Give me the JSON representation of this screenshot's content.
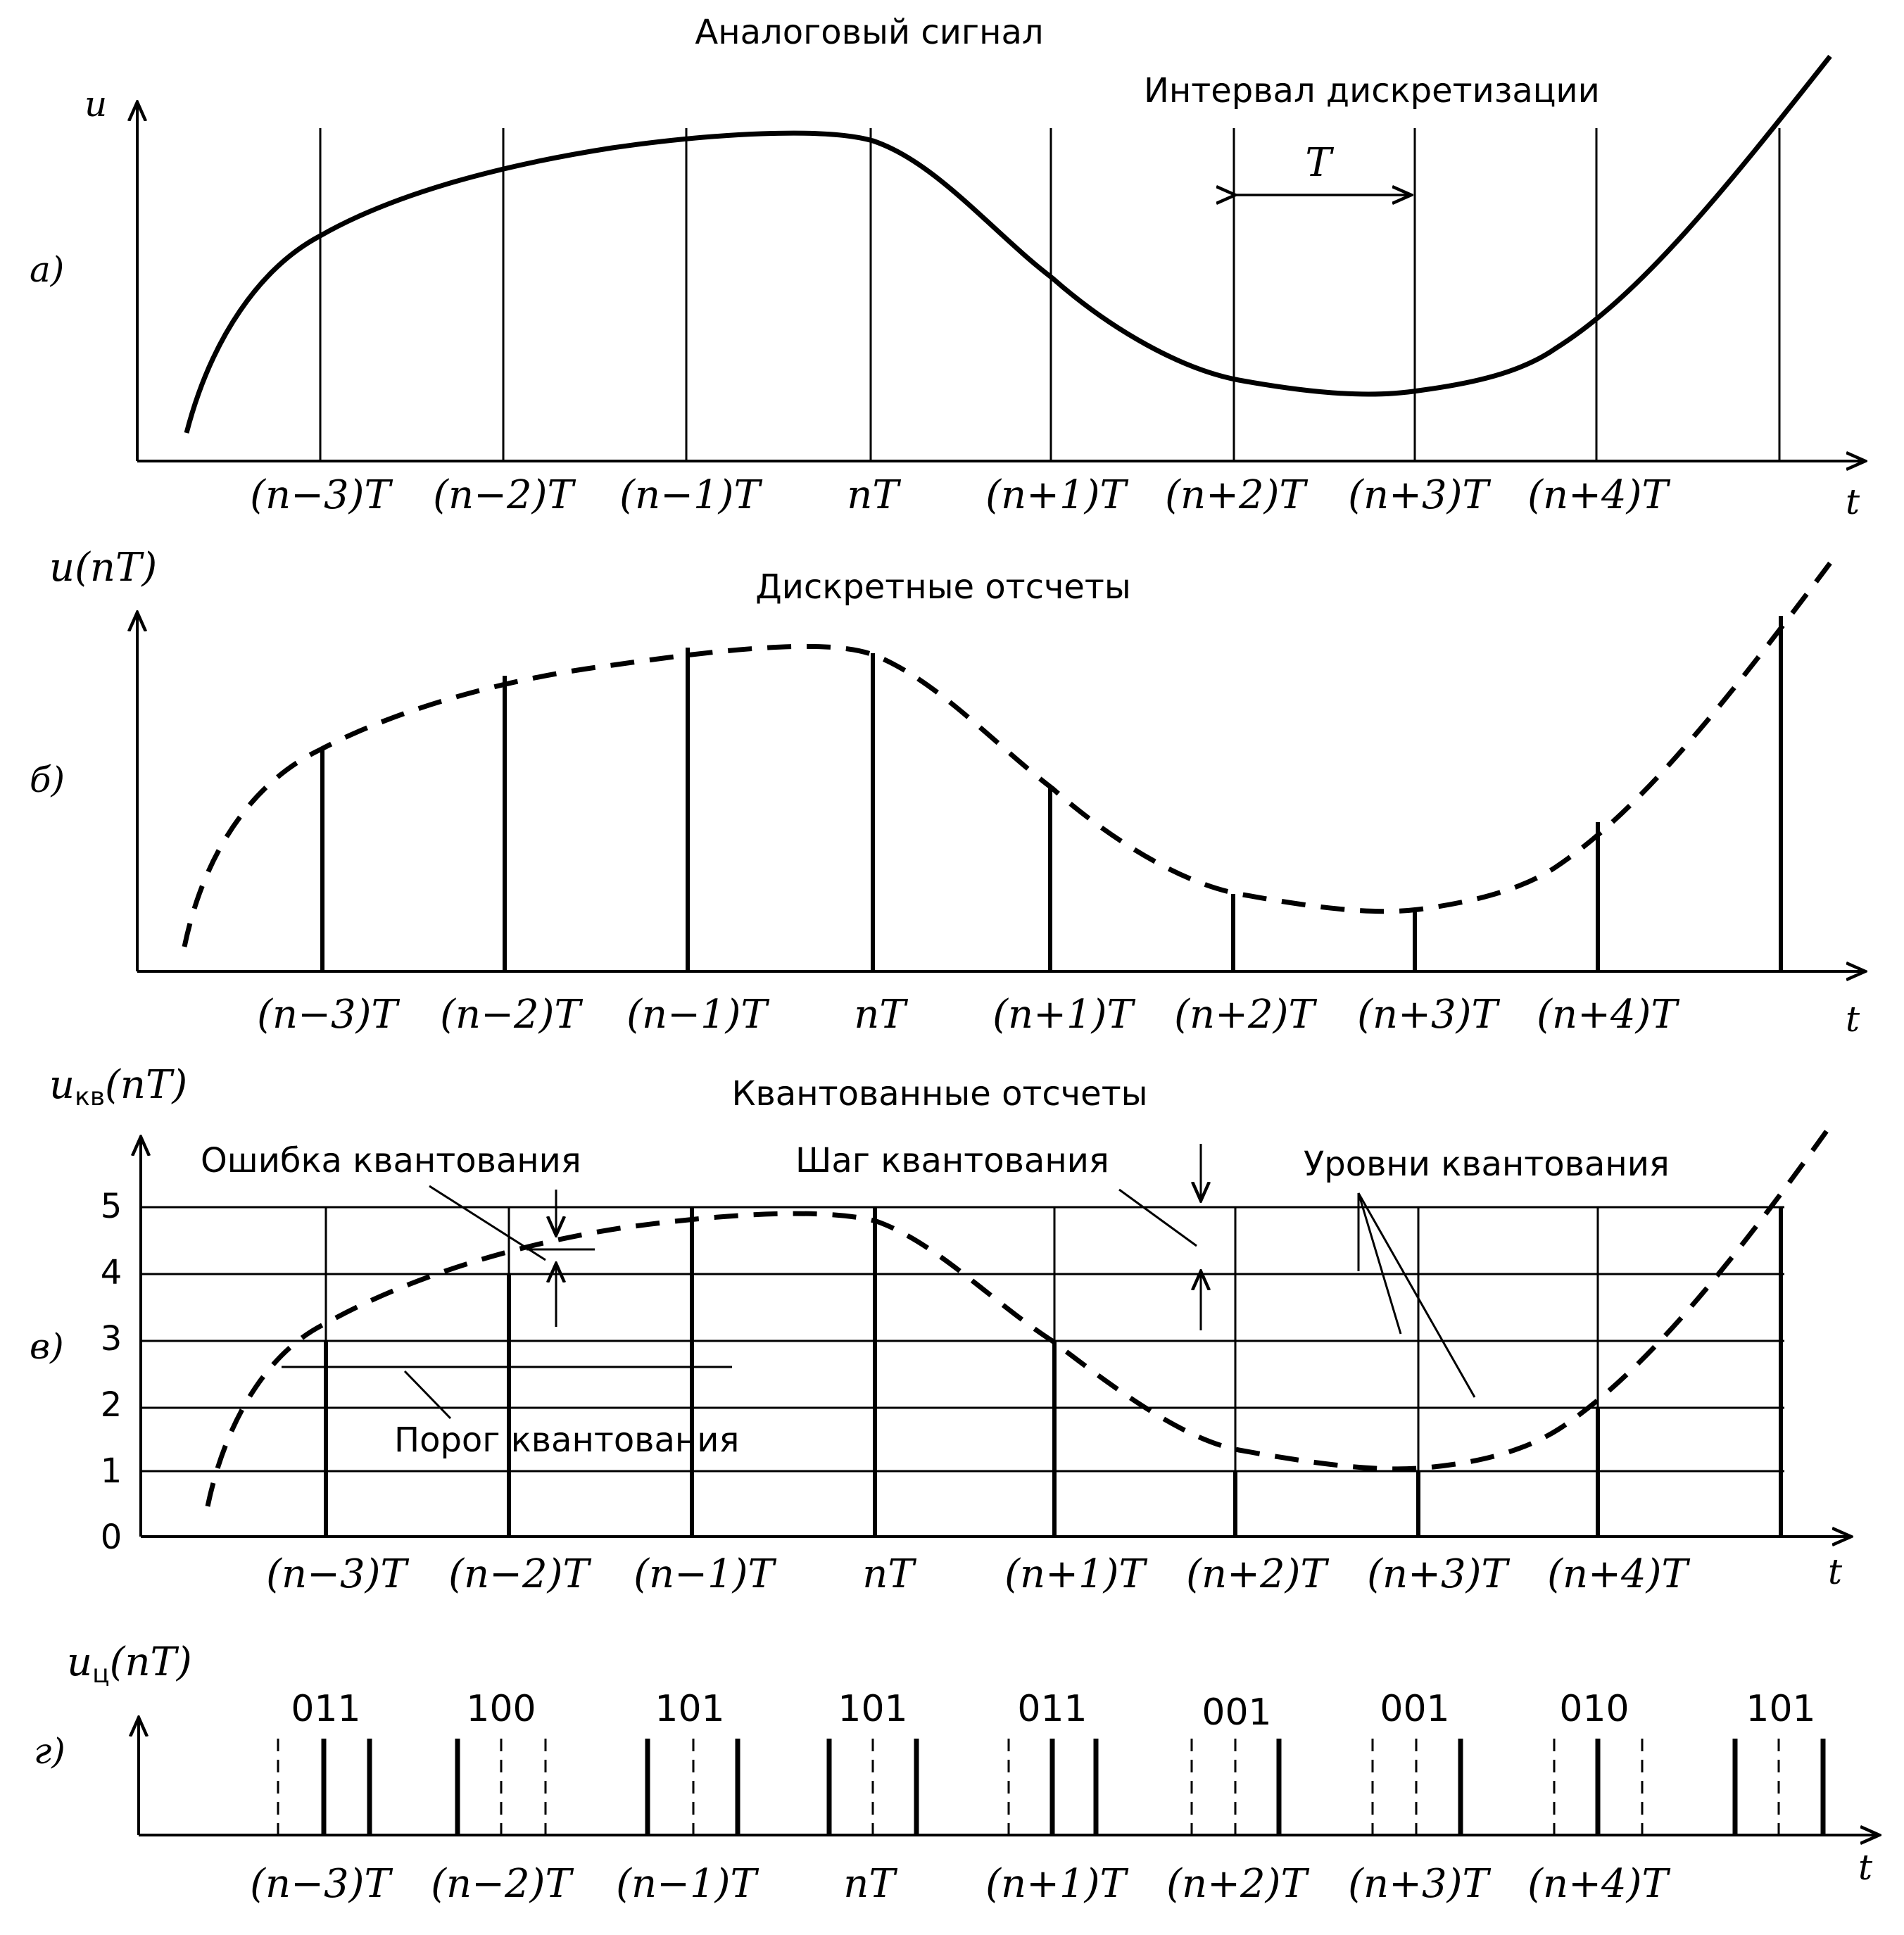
{
  "panel_a": {
    "letter": "а)",
    "title": "Аналоговый сигнал",
    "y_label": "u",
    "interval_label": "Интервал дискретизации",
    "interval_symbol": "T"
  },
  "panel_b": {
    "letter": "б)",
    "title": "Дискретные отсчеты",
    "y_label": "u(nT)"
  },
  "panel_c": {
    "letter": "в)",
    "title": "Квантованные отсчеты",
    "y_label": "u",
    "y_label_sub": "кв",
    "y_label_arg": "(nT)",
    "error_label": "Ошибка квантования",
    "step_label": "Шаг квантования",
    "levels_label": "Уровни квантования",
    "threshold_label": "Порог квантования",
    "levels": [
      "0",
      "1",
      "2",
      "3",
      "4",
      "5"
    ]
  },
  "panel_d": {
    "letter": "г)",
    "y_label": "u",
    "y_label_sub": "ц",
    "y_label_arg": "(nT)",
    "codes": [
      "011",
      "100",
      "101",
      "101",
      "011",
      "001",
      "001",
      "010",
      "101"
    ]
  },
  "time_ticks": [
    "(n−3)T",
    "(n−2)T",
    "(n−1)T",
    "nT",
    "(n+1)T",
    "(n+2)T",
    "(n+3)T",
    "(n+4)T"
  ],
  "t_axis_label": "t"
}
